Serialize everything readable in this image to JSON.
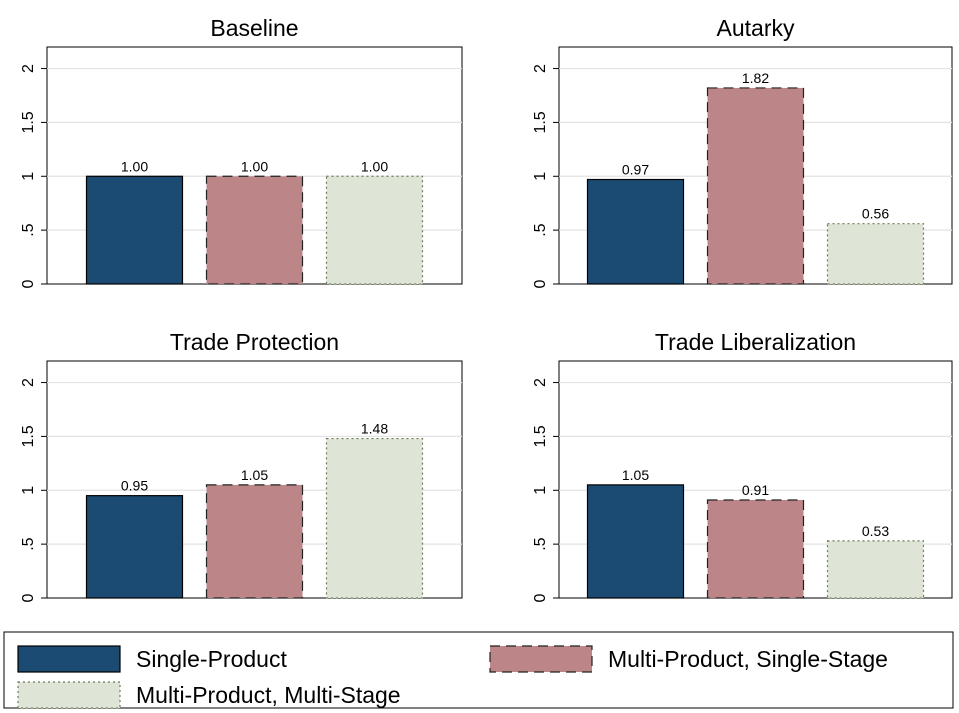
{
  "chart_data": [
    {
      "type": "bar",
      "title": "Baseline",
      "categories": [
        "Single-Product",
        "Multi-Product, Single-Stage",
        "Multi-Product, Multi-Stage"
      ],
      "values": [
        1.0,
        1.0,
        1.0
      ],
      "value_labels": [
        "1.00",
        "1.00",
        "1.00"
      ],
      "ylim": [
        0,
        2.2
      ],
      "yticks": [
        0,
        0.5,
        1,
        1.5,
        2
      ],
      "ytick_labels": [
        "0",
        ".5",
        "1",
        "1.5",
        "2"
      ],
      "grid": true
    },
    {
      "type": "bar",
      "title": "Autarky",
      "categories": [
        "Single-Product",
        "Multi-Product, Single-Stage",
        "Multi-Product, Multi-Stage"
      ],
      "values": [
        0.97,
        1.82,
        0.56
      ],
      "value_labels": [
        "0.97",
        "1.82",
        "0.56"
      ],
      "ylim": [
        0,
        2.2
      ],
      "yticks": [
        0,
        0.5,
        1,
        1.5,
        2
      ],
      "ytick_labels": [
        "0",
        ".5",
        "1",
        "1.5",
        "2"
      ],
      "grid": true
    },
    {
      "type": "bar",
      "title": "Trade Protection",
      "categories": [
        "Single-Product",
        "Multi-Product, Single-Stage",
        "Multi-Product, Multi-Stage"
      ],
      "values": [
        0.95,
        1.05,
        1.48
      ],
      "value_labels": [
        "0.95",
        "1.05",
        "1.48"
      ],
      "ylim": [
        0,
        2.2
      ],
      "yticks": [
        0,
        0.5,
        1,
        1.5,
        2
      ],
      "ytick_labels": [
        "0",
        ".5",
        "1",
        "1.5",
        "2"
      ],
      "grid": true
    },
    {
      "type": "bar",
      "title": "Trade Liberalization",
      "categories": [
        "Single-Product",
        "Multi-Product, Single-Stage",
        "Multi-Product, Multi-Stage"
      ],
      "values": [
        1.05,
        0.91,
        0.53
      ],
      "value_labels": [
        "1.05",
        "0.91",
        "0.53"
      ],
      "ylim": [
        0,
        2.2
      ],
      "yticks": [
        0,
        0.5,
        1,
        1.5,
        2
      ],
      "ytick_labels": [
        "0",
        ".5",
        "1",
        "1.5",
        "2"
      ],
      "grid": true
    }
  ],
  "legend": {
    "placement": "bottom",
    "items": [
      {
        "label": "Single-Product",
        "color": "#1b4a73",
        "border": "solid"
      },
      {
        "label": "Multi-Product, Single-Stage",
        "color": "#bc8587",
        "border": "dashed"
      },
      {
        "label": "Multi-Product, Multi-Stage",
        "color": "#dfe5d6",
        "border": "dotted"
      }
    ]
  },
  "colors": {
    "series": [
      "#1b4a73",
      "#bc8587",
      "#dfe5d6"
    ],
    "grid": "#e3e3e3",
    "axis": "#000000"
  }
}
